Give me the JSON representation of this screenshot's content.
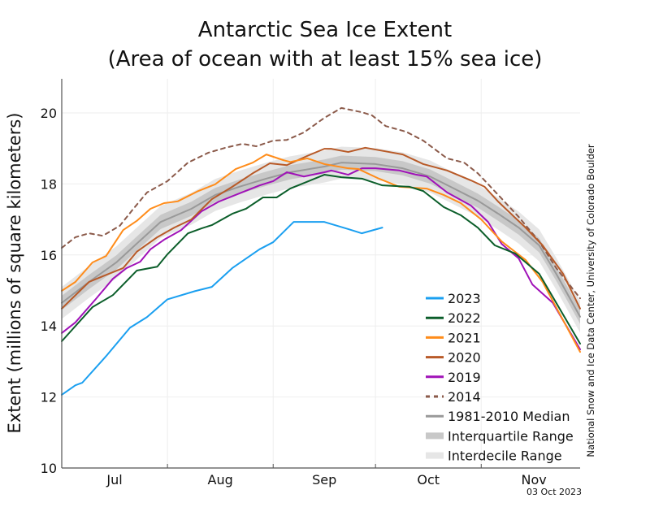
{
  "chart_data": {
    "type": "line",
    "title": "Antarctic Sea Ice Extent",
    "subtitle": "(Area of ocean with at least 15% sea ice)",
    "xlabel": "",
    "ylabel": "Extent (millions of square kilometers)",
    "xlim": [
      "07-01",
      "11-30"
    ],
    "ylim": [
      10,
      21
    ],
    "yticks": [
      10,
      12,
      14,
      16,
      18,
      20
    ],
    "xticks": [
      {
        "label": "Jul",
        "start": "07-01"
      },
      {
        "label": "Aug",
        "start": "08-01"
      },
      {
        "label": "Sep",
        "start": "09-01"
      },
      {
        "label": "Oct",
        "start": "10-01"
      },
      {
        "label": "Nov",
        "start": "11-01"
      }
    ],
    "grid": true,
    "legend_position": "bottom-right",
    "series": [
      {
        "name": "2023",
        "color": "#1a9ff0",
        "style": "solid",
        "x": [
          "07-01",
          "07-05",
          "07-07",
          "07-14",
          "07-21",
          "07-26",
          "08-01",
          "08-09",
          "08-14",
          "08-20",
          "08-28",
          "09-01",
          "09-07",
          "09-16",
          "09-23",
          "09-27",
          "10-03"
        ],
        "y": [
          12.06,
          12.33,
          12.4,
          13.15,
          13.95,
          14.25,
          14.75,
          14.98,
          15.1,
          15.63,
          16.16,
          16.36,
          16.93,
          16.93,
          16.73,
          16.61,
          16.77
        ]
      },
      {
        "name": "2022",
        "color": "#0b5e2a",
        "style": "solid",
        "x": [
          "07-01",
          "07-10",
          "07-16",
          "07-23",
          "07-29",
          "08-01",
          "08-07",
          "08-11",
          "08-14",
          "08-20",
          "08-24",
          "08-29",
          "09-02",
          "09-06",
          "09-16",
          "09-21",
          "09-27",
          "10-03",
          "10-11",
          "10-15",
          "10-21",
          "10-26",
          "10-31",
          "11-05",
          "11-11",
          "11-18",
          "11-23",
          "11-30"
        ],
        "y": [
          13.57,
          14.53,
          14.87,
          15.56,
          15.67,
          16.02,
          16.61,
          16.75,
          16.84,
          17.16,
          17.3,
          17.62,
          17.62,
          17.87,
          18.26,
          18.19,
          18.15,
          17.96,
          17.92,
          17.8,
          17.35,
          17.12,
          16.77,
          16.27,
          16.04,
          15.47,
          14.65,
          13.5
        ]
      },
      {
        "name": "2021",
        "color": "#ff8c1a",
        "style": "solid",
        "x": [
          "07-01",
          "07-05",
          "07-10",
          "07-14",
          "07-19",
          "07-23",
          "07-27",
          "07-31",
          "08-04",
          "08-10",
          "08-15",
          "08-21",
          "08-26",
          "08-30",
          "09-04",
          "09-06",
          "09-11",
          "09-16",
          "09-23",
          "09-26",
          "10-02",
          "10-08",
          "10-16",
          "10-21",
          "10-26",
          "11-01",
          "11-07",
          "11-14",
          "11-19",
          "11-30"
        ],
        "y": [
          14.99,
          15.24,
          15.79,
          15.97,
          16.7,
          16.96,
          17.3,
          17.46,
          17.51,
          17.8,
          17.99,
          18.42,
          18.6,
          18.83,
          18.67,
          18.62,
          18.72,
          18.56,
          18.44,
          18.42,
          18.15,
          17.92,
          17.87,
          17.69,
          17.46,
          17.0,
          16.38,
          15.86,
          15.24,
          13.27
        ]
      },
      {
        "name": "2020",
        "color": "#b85a28",
        "style": "solid",
        "x": [
          "07-01",
          "07-09",
          "07-13",
          "07-19",
          "07-23",
          "07-29",
          "08-03",
          "08-08",
          "08-14",
          "08-20",
          "08-26",
          "08-31",
          "09-05",
          "09-11",
          "09-16",
          "09-18",
          "09-23",
          "09-28",
          "10-05",
          "10-09",
          "10-15",
          "10-22",
          "10-29",
          "11-02",
          "11-06",
          "11-14",
          "11-19",
          "11-25",
          "11-30"
        ],
        "y": [
          14.49,
          15.24,
          15.4,
          15.63,
          16.09,
          16.5,
          16.77,
          17.0,
          17.57,
          17.92,
          18.3,
          18.58,
          18.53,
          18.79,
          18.99,
          18.99,
          18.9,
          19.02,
          18.9,
          18.83,
          18.56,
          18.38,
          18.1,
          17.92,
          17.5,
          16.77,
          16.27,
          15.47,
          14.49
        ]
      },
      {
        "name": "2019",
        "color": "#a012b8",
        "style": "solid",
        "x": [
          "07-01",
          "07-05",
          "07-11",
          "07-16",
          "07-20",
          "07-24",
          "07-27",
          "07-31",
          "08-05",
          "08-11",
          "08-16",
          "08-22",
          "08-28",
          "09-01",
          "09-05",
          "09-10",
          "09-16",
          "09-18",
          "09-23",
          "09-27",
          "10-01",
          "10-08",
          "10-13",
          "10-16",
          "10-22",
          "10-29",
          "11-03",
          "11-07",
          "11-12",
          "11-16",
          "11-22",
          "11-30"
        ],
        "y": [
          13.8,
          14.1,
          14.76,
          15.33,
          15.63,
          15.81,
          16.16,
          16.43,
          16.7,
          17.23,
          17.5,
          17.73,
          17.96,
          18.08,
          18.33,
          18.21,
          18.33,
          18.38,
          18.26,
          18.44,
          18.44,
          18.38,
          18.26,
          18.21,
          17.76,
          17.39,
          16.93,
          16.31,
          15.9,
          15.17,
          14.65,
          13.34
        ]
      },
      {
        "name": "2014",
        "color": "#8b5a4a",
        "style": "dashed",
        "x": [
          "07-01",
          "07-05",
          "07-09",
          "07-13",
          "07-18",
          "07-22",
          "07-26",
          "08-01",
          "08-07",
          "08-13",
          "08-18",
          "08-23",
          "08-27",
          "09-01",
          "09-05",
          "09-10",
          "09-16",
          "09-21",
          "09-27",
          "09-30",
          "10-04",
          "10-10",
          "10-15",
          "10-22",
          "10-27",
          "10-31",
          "11-06",
          "11-12",
          "11-18",
          "11-23",
          "11-30"
        ],
        "y": [
          16.2,
          16.5,
          16.61,
          16.54,
          16.82,
          17.3,
          17.76,
          18.08,
          18.6,
          18.88,
          19.02,
          19.13,
          19.06,
          19.22,
          19.24,
          19.45,
          19.86,
          20.14,
          20.02,
          19.93,
          19.63,
          19.47,
          19.22,
          18.72,
          18.6,
          18.3,
          17.69,
          17.07,
          16.38,
          15.63,
          14.78
        ]
      }
    ],
    "median": {
      "name": "1981-2010 Median",
      "color": "#999999",
      "x": [
        "07-01",
        "07-09",
        "07-17",
        "07-23",
        "07-30",
        "08-08",
        "08-15",
        "08-22",
        "08-30",
        "09-06",
        "09-16",
        "09-21",
        "10-01",
        "10-09",
        "10-17",
        "10-23",
        "10-31",
        "11-06",
        "11-12",
        "11-18",
        "11-23",
        "11-30"
      ],
      "y": [
        14.65,
        15.24,
        15.79,
        16.32,
        16.93,
        17.3,
        17.69,
        17.92,
        18.15,
        18.33,
        18.49,
        18.6,
        18.56,
        18.44,
        18.21,
        17.92,
        17.53,
        17.16,
        16.77,
        16.27,
        15.47,
        14.26
      ]
    },
    "interquartile_range": {
      "name": "Interquartile Range",
      "color": "#c8c8c8",
      "lower": [
        14.45,
        15.04,
        15.59,
        16.12,
        16.73,
        17.1,
        17.49,
        17.72,
        17.95,
        18.13,
        18.29,
        18.4,
        18.36,
        18.24,
        18.01,
        17.72,
        17.33,
        16.96,
        16.57,
        16.07,
        15.27,
        14.06
      ],
      "upper": [
        14.85,
        15.44,
        15.99,
        16.52,
        17.13,
        17.5,
        17.89,
        18.12,
        18.35,
        18.53,
        18.69,
        18.8,
        18.76,
        18.64,
        18.41,
        18.12,
        17.73,
        17.36,
        16.97,
        16.47,
        15.67,
        14.46
      ]
    },
    "interdecile_range": {
      "name": "Interdecile Range",
      "color": "#e6e6e6",
      "lower": [
        14.2,
        14.79,
        15.34,
        15.87,
        16.48,
        16.85,
        17.24,
        17.47,
        17.7,
        17.88,
        18.04,
        18.15,
        18.11,
        17.99,
        17.76,
        17.47,
        17.08,
        16.71,
        16.32,
        15.82,
        15.02,
        13.81
      ],
      "upper": [
        15.1,
        15.69,
        16.24,
        16.77,
        17.38,
        17.75,
        18.14,
        18.37,
        18.6,
        18.78,
        18.94,
        19.05,
        19.01,
        18.89,
        18.66,
        18.37,
        17.98,
        17.61,
        17.22,
        16.72,
        15.92,
        14.71
      ]
    }
  },
  "credit": "National Snow and Ice Data Center, University of Colorado Boulder",
  "date_stamp": "03 Oct 2023"
}
